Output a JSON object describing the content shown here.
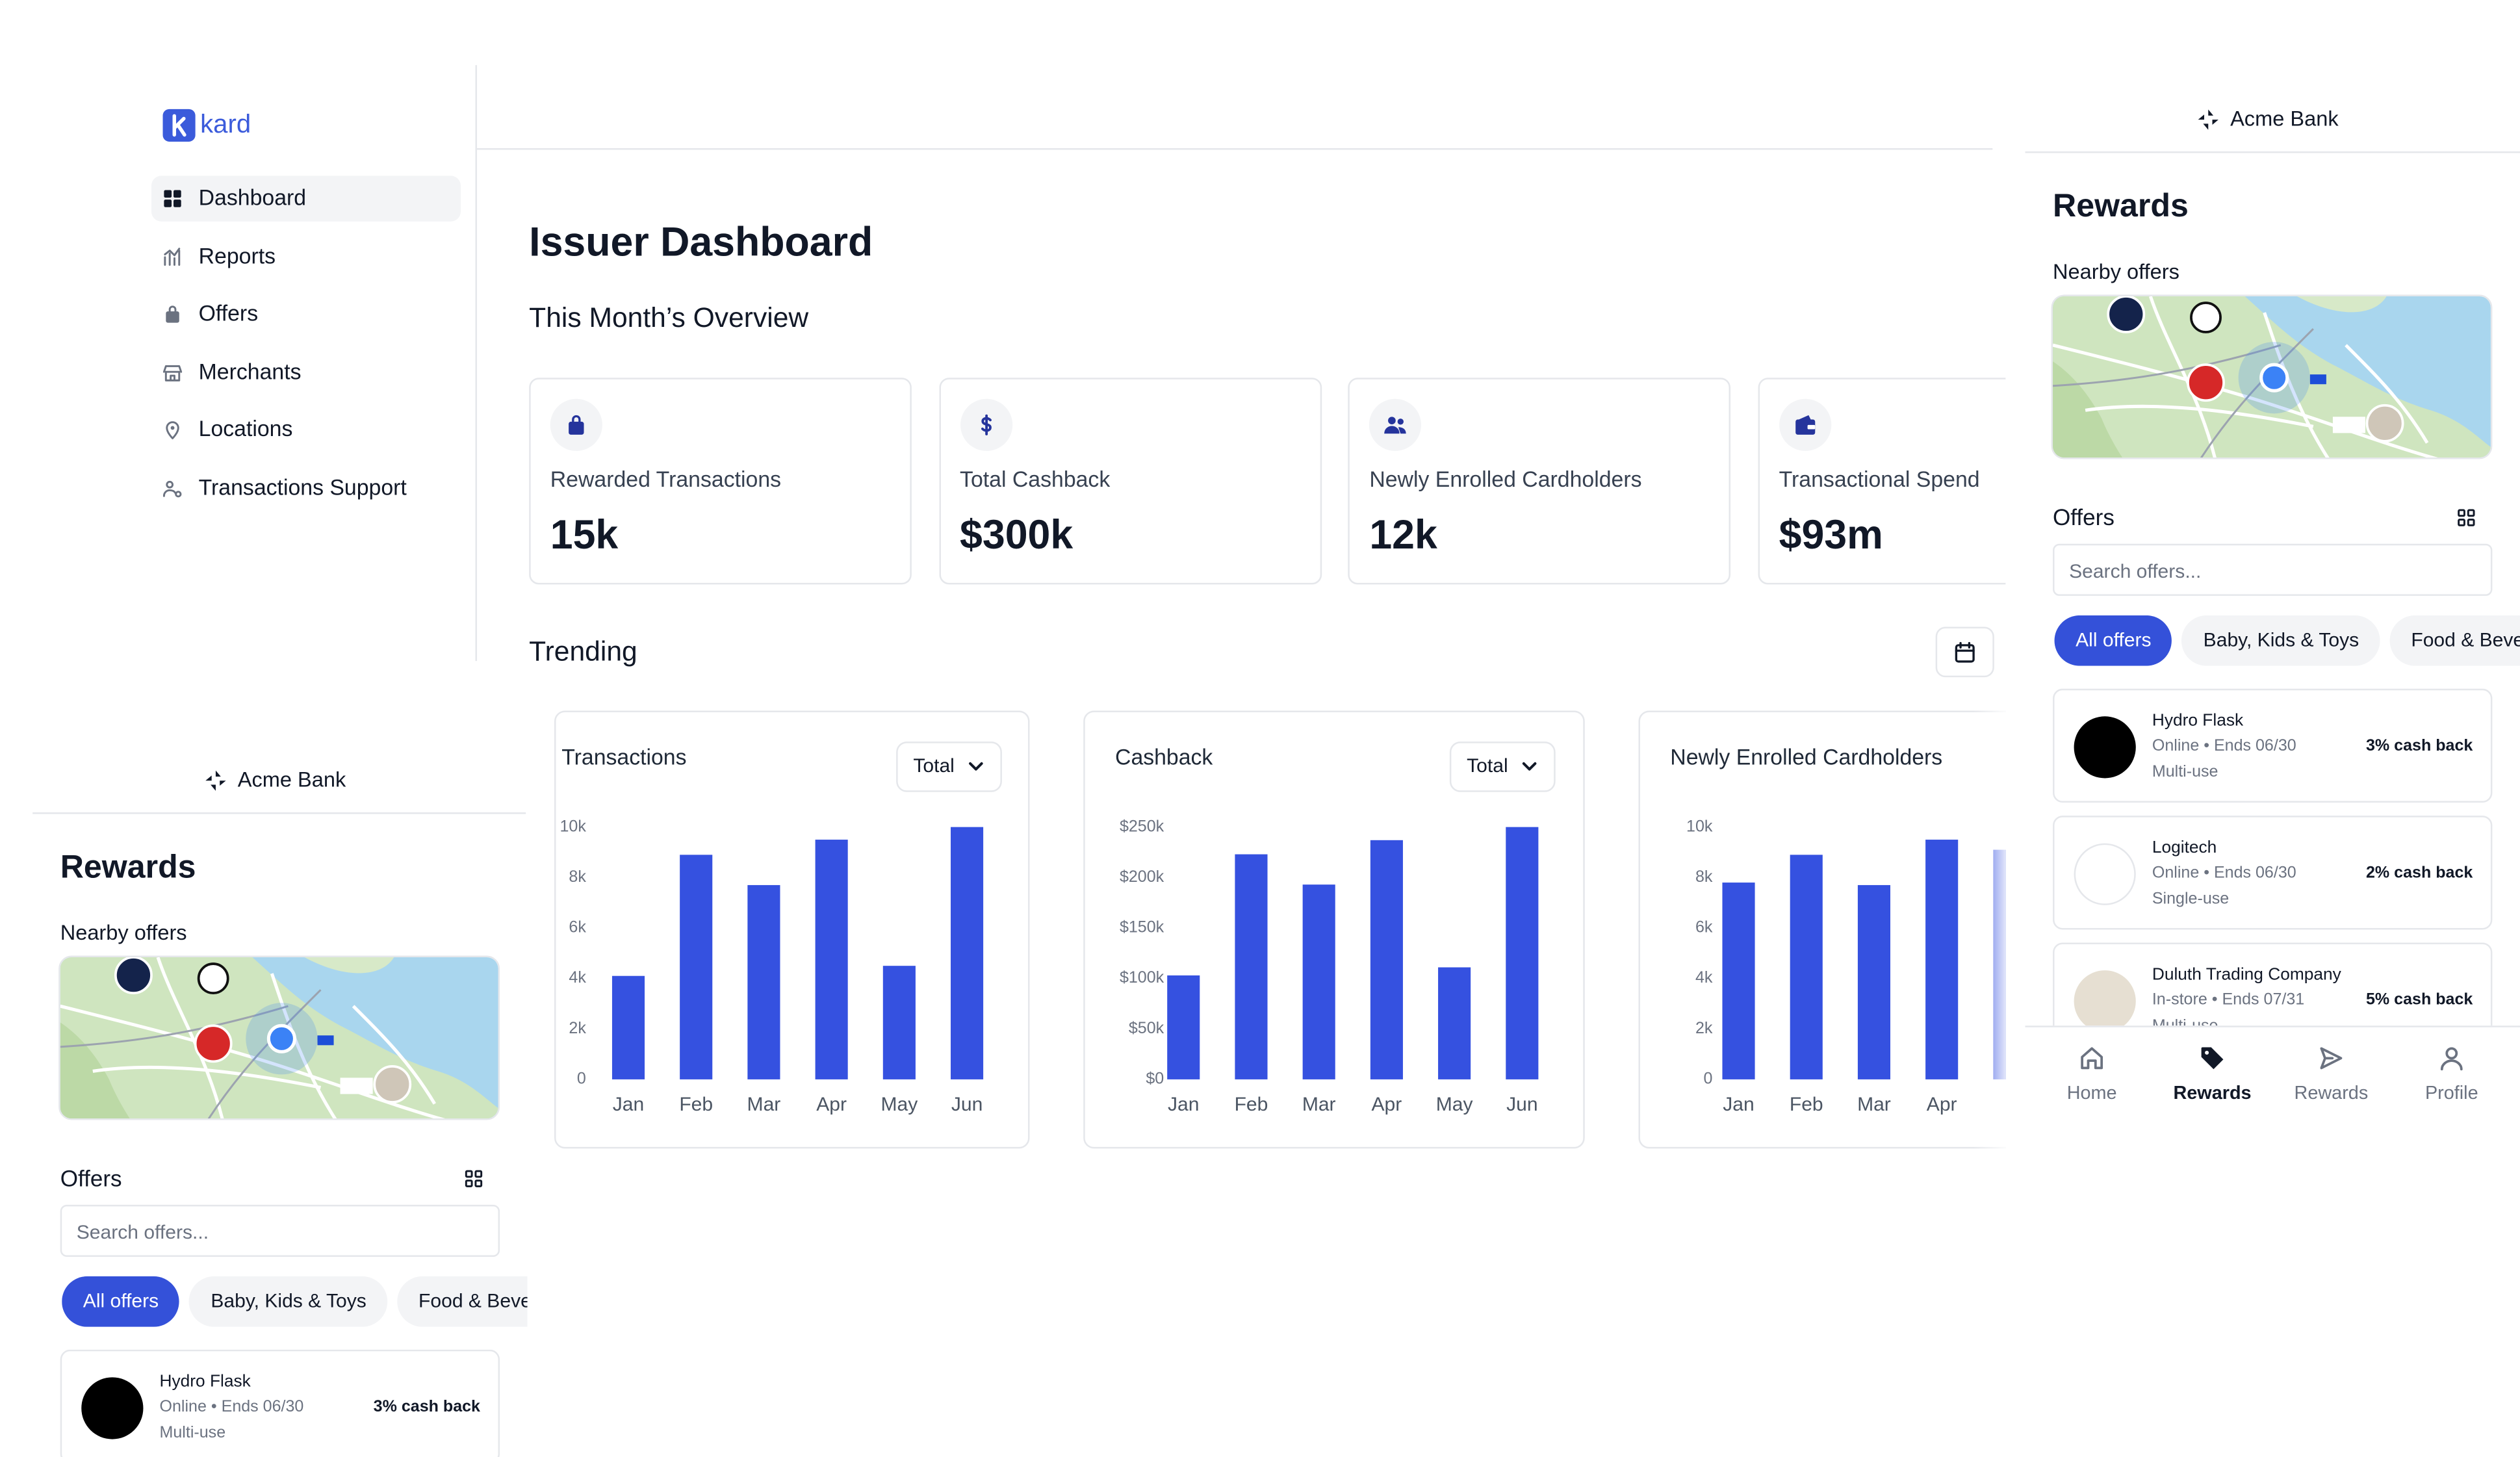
{
  "sidebar": {
    "logo": "kard",
    "nav": [
      "Dashboard",
      "Reports",
      "Offers",
      "Merchants",
      "Locations",
      "Transactions Support"
    ],
    "active": 0
  },
  "main": {
    "title": "Issuer Dashboard",
    "overview_title": "This Month’s Overview",
    "stats": [
      {
        "label": "Rewarded Transactions",
        "value": "15k"
      },
      {
        "label": "Total Cashback",
        "value": "$300k"
      },
      {
        "label": "Newly Enrolled Cardholders",
        "value": "12k"
      },
      {
        "label": "Transactional Spend",
        "value": "$93m"
      }
    ],
    "trending_title": "Trending"
  },
  "chart_data": [
    {
      "type": "bar",
      "title": "Transactions",
      "filter": "Total",
      "categories": [
        "Jan",
        "Feb",
        "Mar",
        "Apr",
        "May",
        "Jun"
      ],
      "values": [
        4100,
        8900,
        7700,
        9500,
        4500,
        10000
      ],
      "color": "#3551e0",
      "ylim": [
        0,
        10000
      ],
      "yticks": [
        0,
        {
          "value": 2000,
          "label": "2k"
        },
        {
          "value": 4000,
          "label": "4k"
        },
        {
          "value": 6000,
          "label": "6k"
        },
        {
          "value": 8000,
          "label": "8k"
        },
        {
          "value": 10000,
          "label": "10k"
        }
      ]
    },
    {
      "type": "bar",
      "title": "Cashback",
      "filter": "Total",
      "categories": [
        "Jan",
        "Feb",
        "Mar",
        "Apr",
        "May",
        "Jun"
      ],
      "values": [
        103000,
        223000,
        193000,
        237000,
        111000,
        250000
      ],
      "color": "#3551e0",
      "ylim": [
        0,
        250000
      ],
      "yticks": [
        {
          "value": 0,
          "label": "$0"
        },
        {
          "value": 50000,
          "label": "$50k"
        },
        {
          "value": 100000,
          "label": "$100k"
        },
        {
          "value": 150000,
          "label": "$150k"
        },
        {
          "value": 200000,
          "label": "$200k"
        },
        {
          "value": 250000,
          "label": "$250k"
        }
      ]
    },
    {
      "type": "bar",
      "title": "Newly Enrolled Cardholders",
      "categories": [
        "Jan",
        "Feb",
        "Mar",
        "Apr",
        null
      ],
      "values": [
        7800,
        8900,
        7700,
        9500,
        9100
      ],
      "color": "#3551e0",
      "ylim": [
        0,
        10000
      ],
      "yticks": [
        0,
        {
          "value": 2000,
          "label": "2k"
        },
        {
          "value": 4000,
          "label": "4k"
        },
        {
          "value": 6000,
          "label": "6k"
        },
        {
          "value": 8000,
          "label": "8k"
        },
        {
          "value": 10000,
          "label": "10k"
        }
      ]
    }
  ],
  "mobile": [
    {
      "bank": "Acme Bank",
      "title": "Rewards",
      "nearby": "Nearby offers",
      "offers_title": "Offers",
      "search_placeholder": "Search offers...",
      "chips": [
        "All offers",
        "Baby, Kids & Toys",
        "Food & Beverage"
      ],
      "active_chip": 0,
      "offers": [
        {
          "name": "Hydro Flask",
          "details": "Online • Ends 06/30",
          "usage": "Multi-use",
          "cashback": "3% cash back"
        },
        {
          "name": "Logitech",
          "details": "Online • Ends 06/30",
          "usage": "Single-use",
          "cashback": "2% cash back"
        },
        {
          "name": "Duluth Trading Company",
          "details": "In-store • Ends 07/31",
          "usage": "Multi-use",
          "cashback": "5% cash back"
        }
      ],
      "nav": [
        "Home",
        "Rewards",
        "Rewards",
        "Profile"
      ],
      "active_nav": 1
    },
    {
      "bank": "Acme Bank",
      "title": "Rewards",
      "nearby": "Nearby offers",
      "offers_title": "Offers",
      "search_placeholder": "Search offers...",
      "chips": [
        "All offers",
        "Baby, Kids & Toys",
        "Food & Beverage"
      ],
      "active_chip": 0,
      "offers": [
        {
          "name": "Hydro Flask",
          "details": "Online • Ends 06/30",
          "usage": "Multi-use",
          "cashback": "3% cash back"
        }
      ]
    }
  ]
}
